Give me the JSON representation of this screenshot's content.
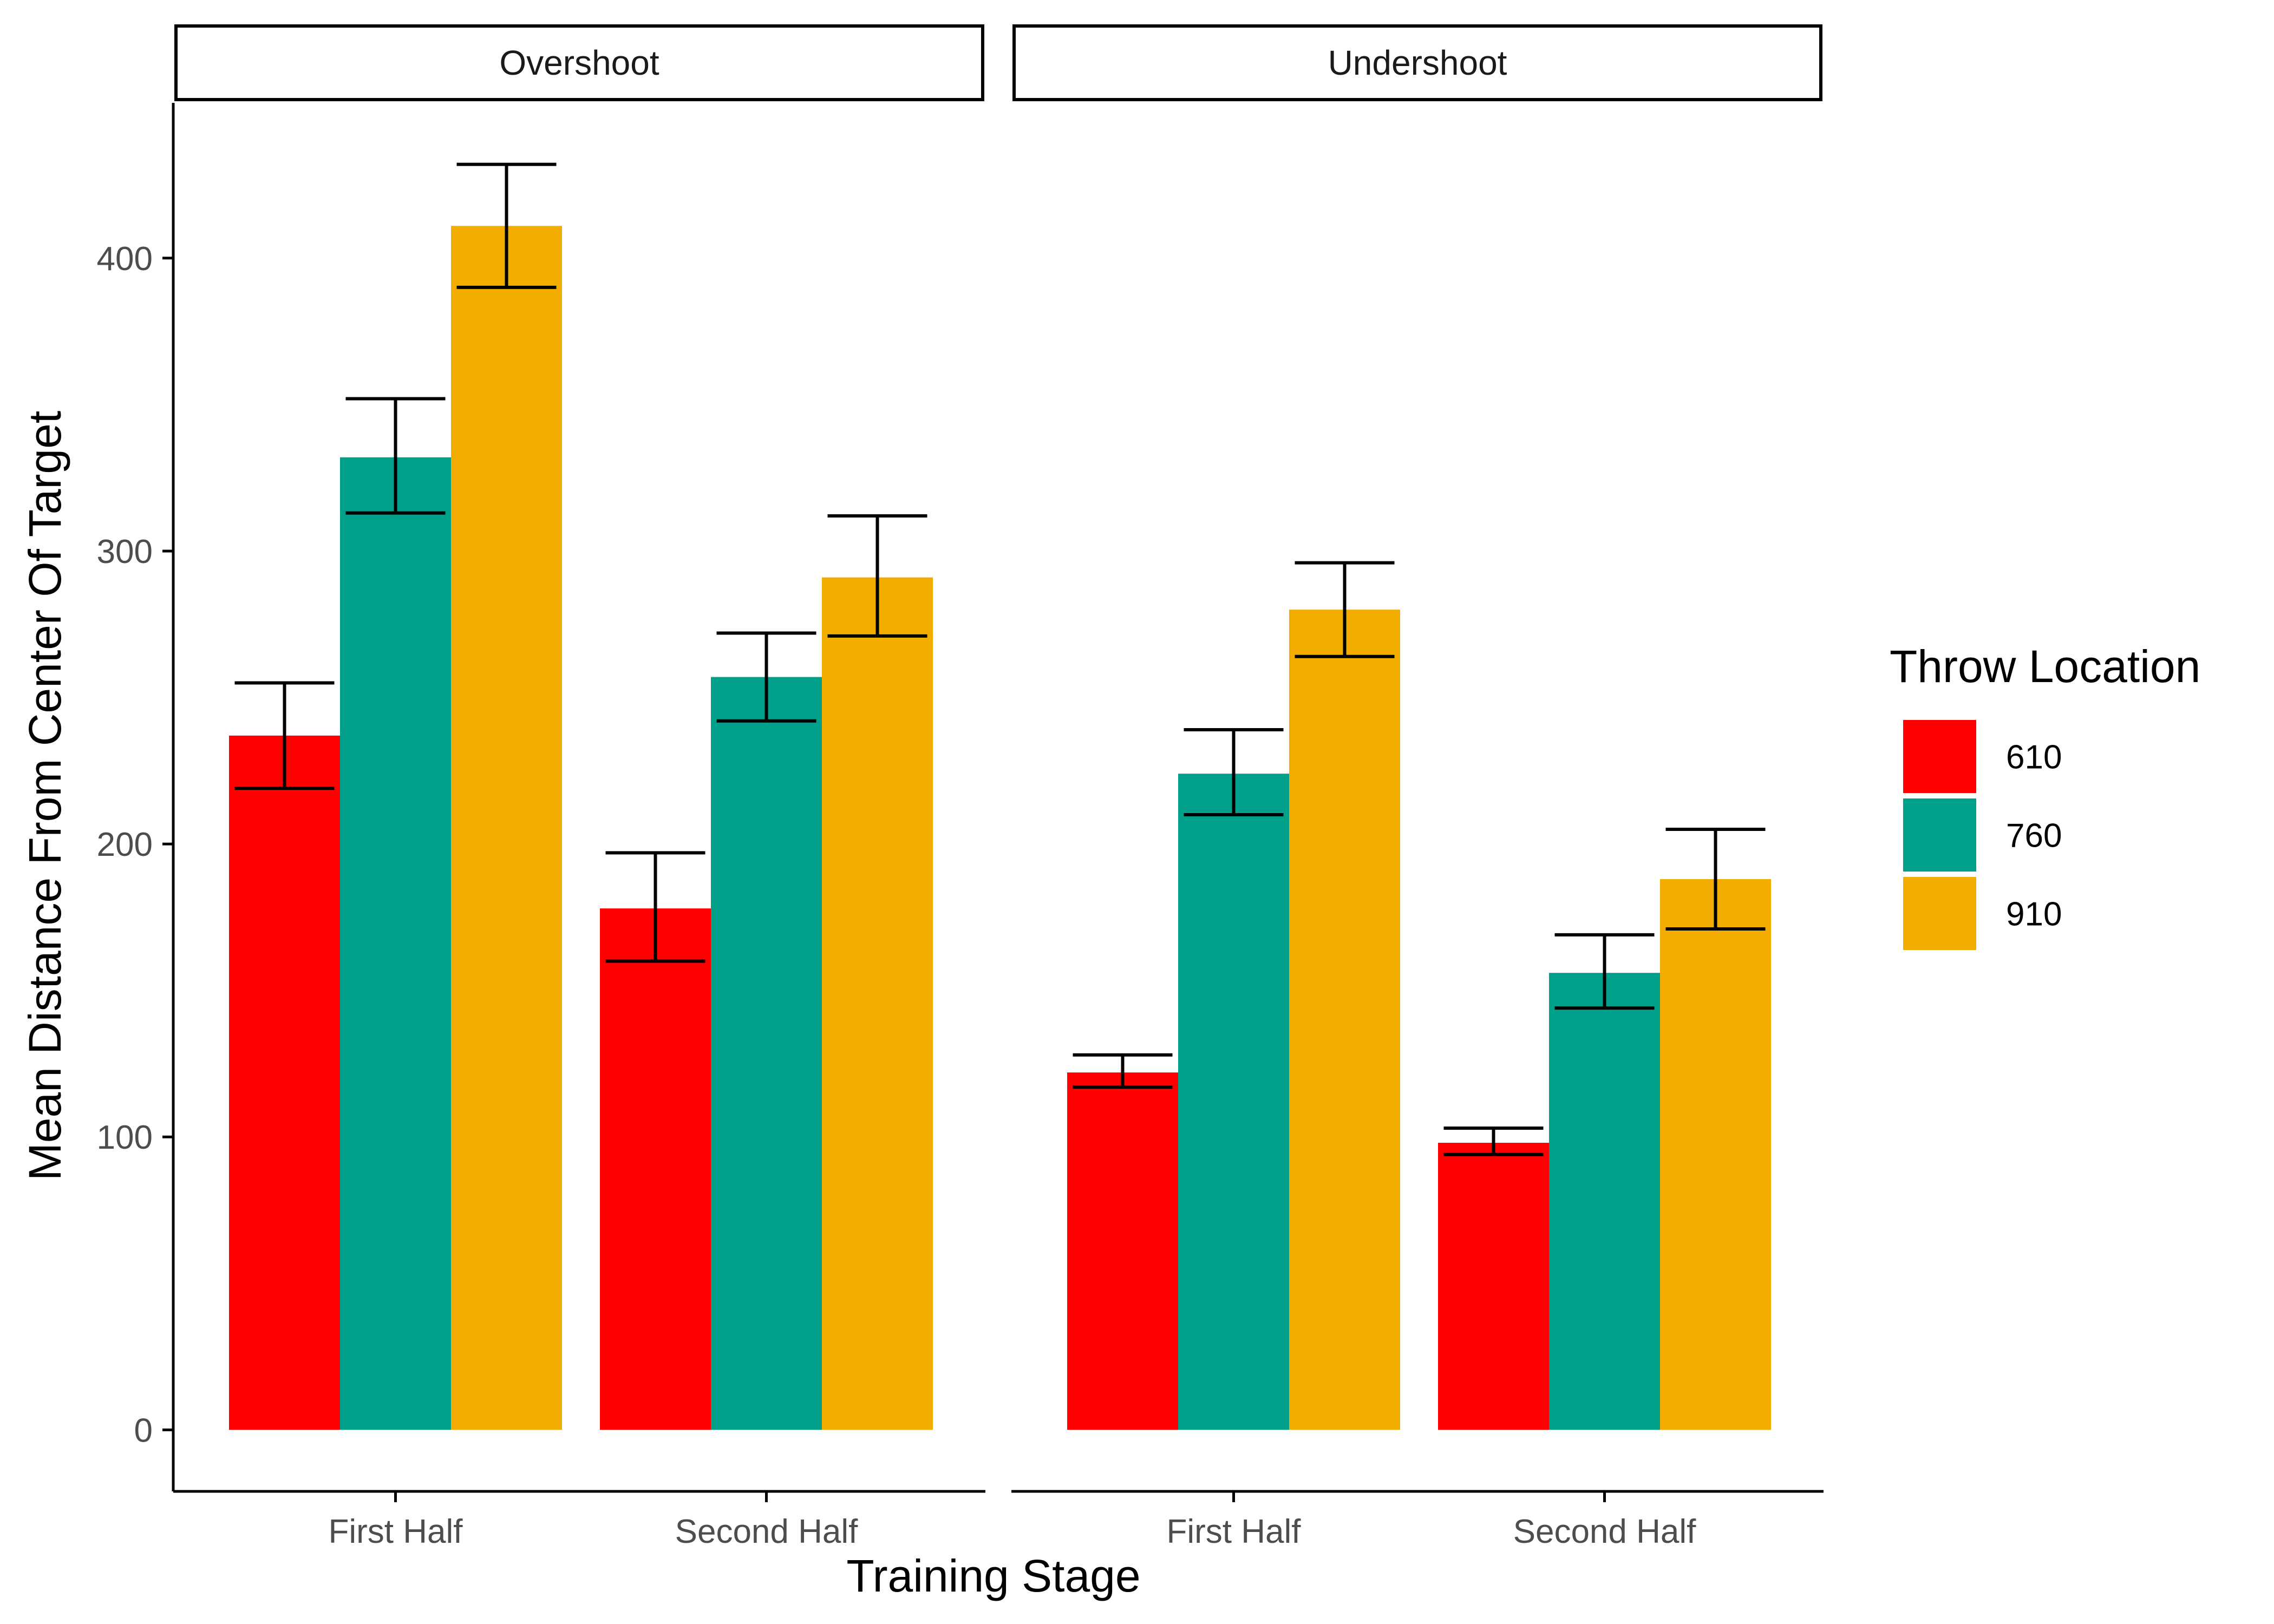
{
  "chart_data": {
    "type": "bar",
    "facets": [
      {
        "label": "Overshoot",
        "categories": [
          "First Half",
          "Second Half"
        ],
        "series": [
          {
            "name": "610",
            "values": [
              237,
              178
            ],
            "error_low": [
              219,
              160
            ],
            "error_high": [
              255,
              197
            ]
          },
          {
            "name": "760",
            "values": [
              332,
              257
            ],
            "error_low": [
              313,
              242
            ],
            "error_high": [
              352,
              272
            ]
          },
          {
            "name": "910",
            "values": [
              411,
              291
            ],
            "error_low": [
              390,
              271
            ],
            "error_high": [
              432,
              312
            ]
          }
        ]
      },
      {
        "label": "Undershoot",
        "categories": [
          "First Half",
          "Second Half"
        ],
        "series": [
          {
            "name": "610",
            "values": [
              122,
              98
            ],
            "error_low": [
              117,
              94
            ],
            "error_high": [
              128,
              103
            ]
          },
          {
            "name": "760",
            "values": [
              224,
              156
            ],
            "error_low": [
              210,
              144
            ],
            "error_high": [
              239,
              169
            ]
          },
          {
            "name": "910",
            "values": [
              280,
              188
            ],
            "error_low": [
              264,
              171
            ],
            "error_high": [
              296,
              205
            ]
          }
        ]
      }
    ],
    "xlabel": "Training Stage",
    "ylabel": "Mean Distance From Center Of Target",
    "ylim": [
      -21,
      453
    ],
    "yticks": [
      0,
      100,
      200,
      300,
      400
    ],
    "legend": {
      "title": "Throw Location",
      "position": "right",
      "entries": [
        "610",
        "760",
        "910"
      ]
    },
    "colors": {
      "610": "#ff0000",
      "760": "#00a08a",
      "910": "#f2ad00"
    },
    "grid": false
  }
}
